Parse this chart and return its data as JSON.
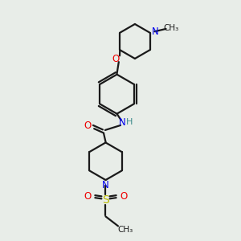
{
  "bg_color": "#e8ede8",
  "bond_color": "#1a1a1a",
  "N_color": "#0000ee",
  "O_color": "#ee0000",
  "S_color": "#bbbb00",
  "H_color": "#3a8a8a",
  "line_width": 1.6,
  "fig_size": [
    3.0,
    3.0
  ],
  "dpi": 100,
  "xlim": [
    0,
    10
  ],
  "ylim": [
    0,
    10
  ]
}
